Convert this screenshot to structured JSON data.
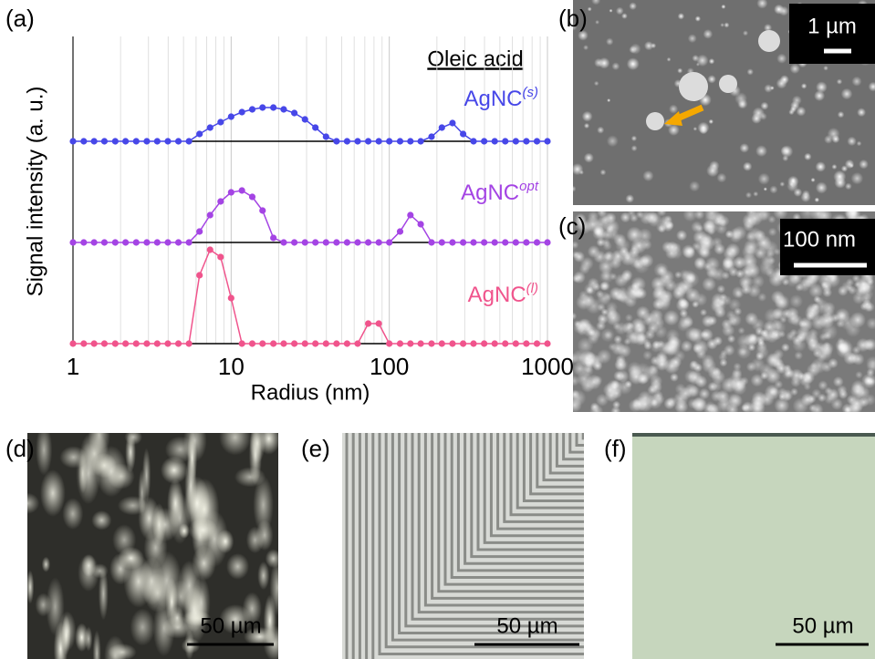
{
  "chart_data": {
    "type": "line",
    "title": "Oleic acid",
    "x_label": "Radius (nm)",
    "y_label": "Signal intensity (a. u.)",
    "xscale": "log",
    "xlim": [
      1,
      1000
    ],
    "xticks": [
      1,
      10,
      100,
      1000
    ],
    "xminorticks": [
      2,
      3,
      4,
      5,
      6,
      7,
      8,
      9,
      20,
      30,
      40,
      50,
      60,
      70,
      80,
      90,
      200,
      300,
      400,
      500,
      600,
      700,
      800,
      900
    ],
    "grid": true,
    "x": [
      1,
      1.17,
      1.36,
      1.58,
      1.85,
      2.15,
      2.51,
      2.93,
      3.41,
      3.98,
      4.64,
      5.41,
      6.31,
      7.36,
      8.58,
      10,
      11.7,
      13.6,
      15.8,
      18.5,
      21.5,
      25.1,
      29.3,
      34.1,
      39.8,
      46.4,
      54.1,
      63.1,
      73.6,
      85.8,
      100,
      117,
      136,
      158,
      185,
      215,
      251,
      293,
      341,
      398,
      464,
      541,
      631,
      736,
      858,
      1000
    ],
    "series": [
      {
        "name": "AgNC",
        "name_superscript": "(s)",
        "color": "#4747e8",
        "ylim": [
          0,
          110
        ],
        "values": [
          0,
          0,
          0,
          0,
          0,
          0,
          0,
          0,
          0,
          0,
          0,
          0,
          8,
          15,
          21,
          27,
          32,
          35,
          37,
          37,
          35,
          31,
          24,
          15,
          5,
          0,
          0,
          0,
          0,
          0,
          0,
          0,
          0,
          0,
          5,
          15,
          20,
          8,
          0,
          0,
          0,
          0,
          0,
          0,
          0,
          0
        ]
      },
      {
        "name": "AgNC",
        "name_superscript": "opt",
        "color": "#a444e4",
        "ylim": [
          0,
          110
        ],
        "values": [
          0,
          0,
          0,
          0,
          0,
          0,
          0,
          0,
          0,
          0,
          0,
          0,
          12,
          30,
          45,
          55,
          57,
          50,
          35,
          5,
          0,
          0,
          0,
          0,
          0,
          0,
          0,
          0,
          0,
          0,
          0,
          12,
          30,
          20,
          0,
          0,
          0,
          0,
          0,
          0,
          0,
          0,
          0,
          0,
          0,
          0
        ]
      },
      {
        "name": "AgNC",
        "name_superscript": "(l)",
        "color": "#f0548c",
        "ylim": [
          0,
          110
        ],
        "values": [
          0,
          0,
          0,
          0,
          0,
          0,
          0,
          0,
          0,
          0,
          0,
          0,
          75,
          103,
          95,
          50,
          0,
          0,
          0,
          0,
          0,
          0,
          0,
          0,
          0,
          0,
          0,
          0,
          22,
          22,
          0,
          0,
          0,
          0,
          0,
          0,
          0,
          0,
          0,
          0,
          0,
          0,
          0,
          0,
          0,
          0
        ]
      }
    ]
  },
  "panels": [
    {
      "label": "(a)"
    },
    {
      "label": "(b)",
      "scale_bar": "1 µm"
    },
    {
      "label": "(c)",
      "scale_bar": "100 nm"
    },
    {
      "label": "(d)",
      "scale_bar": "50 µm"
    },
    {
      "label": "(e)",
      "scale_bar": "50 µm"
    },
    {
      "label": "(f)",
      "scale_bar": "50 µm"
    }
  ]
}
